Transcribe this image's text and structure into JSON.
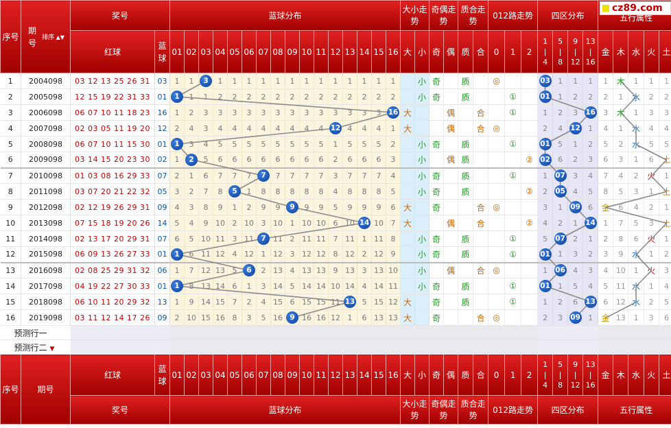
{
  "logo": {
    "text": "cz89.com"
  },
  "top_header": {
    "seq": "序号",
    "issue": "期号",
    "sort": "排序",
    "prize": "奖号",
    "blue_dist": "蓝球分布",
    "big_small": "大小走势",
    "odd_even": "奇偶走势",
    "prime_comp": "质合走势",
    "road012": "012路走势",
    "zone4": "四区分布",
    "wuxing": "五行属性",
    "red_ball": "红球",
    "blue_ball": "蓝球",
    "nums": [
      "01",
      "02",
      "03",
      "04",
      "05",
      "06",
      "07",
      "08",
      "09",
      "10",
      "11",
      "12",
      "13",
      "14",
      "15",
      "16"
    ],
    "bs_labels": [
      "大",
      "小"
    ],
    "oe_labels": [
      "奇",
      "偶"
    ],
    "pc_labels": [
      "质",
      "合"
    ],
    "road_labels": [
      "0",
      "1",
      "2"
    ],
    "zones": [
      {
        "a": "1",
        "b": "|",
        "c": "4"
      },
      {
        "a": "5",
        "b": "|",
        "c": "8"
      },
      {
        "a": "9",
        "b": "|",
        "c": "12"
      },
      {
        "a": "13",
        "b": "|",
        "c": "16"
      }
    ],
    "elements": [
      "金",
      "木",
      "水",
      "火",
      "土"
    ]
  },
  "rows": [
    {
      "seq": "1",
      "issue": "2004098",
      "red": "03 12 13 25 26 31",
      "blue": "03",
      "dist": [
        "1",
        "1",
        "3",
        "1",
        "1",
        "1",
        "1",
        "1",
        "1",
        "1",
        "1",
        "1",
        "1",
        "1",
        "1",
        "1"
      ],
      "bs": "小",
      "oe": "奇",
      "pc": "质",
      "road": "◎",
      "road_idx": 0,
      "zone": [
        "03",
        "1",
        "1",
        "1"
      ],
      "zone_idx": 0,
      "wx": [
        "1",
        "木",
        "1",
        "1",
        "1"
      ],
      "wx_idx": 1
    },
    {
      "seq": "2",
      "issue": "2005098",
      "red": "12 15 19 22 31 33",
      "blue": "01",
      "dist": [
        "1",
        "1",
        "1",
        "2",
        "2",
        "2",
        "2",
        "2",
        "2",
        "2",
        "2",
        "2",
        "2",
        "2",
        "2",
        "2"
      ],
      "bs": "小",
      "oe": "奇",
      "pc": "质",
      "road": "①",
      "road_idx": 1,
      "zone": [
        "01",
        "1",
        "2",
        "2"
      ],
      "zone_idx": 0,
      "wx": [
        "2",
        "1",
        "水",
        "2",
        "2"
      ],
      "wx_idx": 2
    },
    {
      "seq": "3",
      "issue": "2006098",
      "red": "06 07 10 11 18 23",
      "blue": "16",
      "dist": [
        "1",
        "2",
        "3",
        "3",
        "3",
        "3",
        "3",
        "3",
        "3",
        "3",
        "3",
        "3",
        "3",
        "3",
        "3",
        "16"
      ],
      "bs": "大",
      "oe": "偶",
      "pc": "合",
      "road": "①",
      "road_idx": 1,
      "zone": [
        "1",
        "2",
        "3",
        "16"
      ],
      "zone_idx": 3,
      "wx": [
        "3",
        "木",
        "1",
        "3",
        "3"
      ],
      "wx_idx": 1
    },
    {
      "seq": "4",
      "issue": "2007098",
      "red": "02 03 05 11 19 20",
      "blue": "12",
      "dist": [
        "2",
        "4",
        "3",
        "4",
        "4",
        "4",
        "4",
        "4",
        "4",
        "4",
        "4",
        "12",
        "4",
        "4",
        "4",
        "1"
      ],
      "bs": "大",
      "oe": "偶",
      "pc": "合",
      "road": "◎",
      "road_idx": 0,
      "zone": [
        "2",
        "4",
        "12",
        "1"
      ],
      "zone_idx": 2,
      "wx": [
        "4",
        "1",
        "水",
        "4",
        "4"
      ],
      "wx_idx": 2
    },
    {
      "seq": "5",
      "issue": "2008098",
      "red": "06 07 10 11 15 30",
      "blue": "01",
      "dist": [
        "1",
        "3",
        "4",
        "5",
        "5",
        "5",
        "5",
        "5",
        "5",
        "5",
        "5",
        "1",
        "5",
        "5",
        "5",
        "2"
      ],
      "bs": "小",
      "oe": "奇",
      "pc": "质",
      "road": "①",
      "road_idx": 1,
      "zone": [
        "01",
        "5",
        "1",
        "2"
      ],
      "zone_idx": 0,
      "wx": [
        "5",
        "2",
        "水",
        "5",
        "5"
      ],
      "wx_idx": 2
    },
    {
      "seq": "6",
      "issue": "2009098",
      "red": "03 14 15 20 23 30",
      "blue": "02",
      "dist": [
        "1",
        "2",
        "5",
        "6",
        "6",
        "6",
        "6",
        "6",
        "6",
        "6",
        "6",
        "2",
        "6",
        "6",
        "6",
        "3"
      ],
      "bs": "小",
      "oe": "偶",
      "pc": "质",
      "road": "②",
      "road_idx": 2,
      "zone": [
        "02",
        "6",
        "2",
        "3"
      ],
      "zone_idx": 0,
      "wx": [
        "6",
        "3",
        "1",
        "6",
        "土"
      ],
      "wx_idx": 4
    },
    {
      "seq": "7",
      "issue": "2010098",
      "red": "01 03 08 16 29 33",
      "blue": "07",
      "dist": [
        "2",
        "1",
        "6",
        "7",
        "7",
        "7",
        "7",
        "7",
        "7",
        "7",
        "7",
        "3",
        "7",
        "7",
        "7",
        "4"
      ],
      "bs": "小",
      "oe": "奇",
      "pc": "质",
      "road": "①",
      "road_idx": 1,
      "zone": [
        "1",
        "07",
        "3",
        "4"
      ],
      "zone_idx": 1,
      "wx": [
        "7",
        "4",
        "2",
        "火",
        "1"
      ],
      "wx_idx": 3
    },
    {
      "seq": "8",
      "issue": "2011098",
      "red": "03 07 20 21 22 32",
      "blue": "05",
      "dist": [
        "3",
        "2",
        "7",
        "8",
        "5",
        "1",
        "8",
        "8",
        "8",
        "8",
        "8",
        "4",
        "8",
        "8",
        "8",
        "5"
      ],
      "bs": "小",
      "oe": "奇",
      "pc": "质",
      "road": "②",
      "road_idx": 2,
      "zone": [
        "2",
        "05",
        "4",
        "5"
      ],
      "zone_idx": 1,
      "wx": [
        "8",
        "5",
        "3",
        "1",
        "土"
      ],
      "wx_idx": 4
    },
    {
      "seq": "9",
      "issue": "2012098",
      "red": "02 12 19 26 29 31",
      "blue": "09",
      "dist": [
        "4",
        "3",
        "8",
        "9",
        "1",
        "2",
        "9",
        "9",
        "9",
        "9",
        "9",
        "5",
        "9",
        "9",
        "9",
        "6"
      ],
      "bs": "大",
      "oe": "奇",
      "pc": "合",
      "road": "◎",
      "road_idx": 0,
      "zone": [
        "3",
        "1",
        "09",
        "6"
      ],
      "zone_idx": 2,
      "wx": [
        "金",
        "6",
        "4",
        "2",
        "1"
      ],
      "wx_idx": 0
    },
    {
      "seq": "10",
      "issue": "2013098",
      "red": "07 15 18 19 20 26",
      "blue": "14",
      "dist": [
        "5",
        "4",
        "9",
        "10",
        "2",
        "10",
        "3",
        "10",
        "1",
        "10",
        "10",
        "6",
        "10",
        "14",
        "10",
        "7"
      ],
      "bs": "大",
      "oe": "偶",
      "pc": "合",
      "road": "②",
      "road_idx": 2,
      "zone": [
        "4",
        "2",
        "1",
        "14"
      ],
      "zone_idx": 3,
      "wx": [
        "1",
        "7",
        "5",
        "3",
        "土"
      ],
      "wx_idx": 4
    },
    {
      "seq": "11",
      "issue": "2014098",
      "red": "02 13 17 20 29 31",
      "blue": "07",
      "dist": [
        "6",
        "5",
        "10",
        "11",
        "3",
        "11",
        "7",
        "11",
        "2",
        "11",
        "11",
        "7",
        "11",
        "1",
        "11",
        "8"
      ],
      "bs": "小",
      "oe": "奇",
      "pc": "质",
      "road": "①",
      "road_idx": 1,
      "zone": [
        "5",
        "07",
        "2",
        "1"
      ],
      "zone_idx": 1,
      "wx": [
        "2",
        "8",
        "6",
        "火",
        "1"
      ],
      "wx_idx": 3
    },
    {
      "seq": "12",
      "issue": "2015098",
      "red": "06 09 13 26 27 33",
      "blue": "01",
      "dist": [
        "1",
        "6",
        "11",
        "12",
        "4",
        "12",
        "1",
        "12",
        "3",
        "12",
        "12",
        "8",
        "12",
        "2",
        "12",
        "9"
      ],
      "bs": "小",
      "oe": "奇",
      "pc": "质",
      "road": "①",
      "road_idx": 1,
      "zone": [
        "01",
        "1",
        "3",
        "2"
      ],
      "zone_idx": 0,
      "wx": [
        "3",
        "9",
        "水",
        "1",
        "2"
      ],
      "wx_idx": 2
    },
    {
      "seq": "13",
      "issue": "2016098",
      "red": "02 08 25 29 31 32",
      "blue": "06",
      "dist": [
        "1",
        "7",
        "12",
        "13",
        "5",
        "6",
        "2",
        "13",
        "4",
        "13",
        "13",
        "9",
        "13",
        "3",
        "13",
        "10"
      ],
      "bs": "小",
      "oe": "偶",
      "pc": "合",
      "road": "◎",
      "road_idx": 0,
      "zone": [
        "1",
        "06",
        "4",
        "3"
      ],
      "zone_idx": 1,
      "wx": [
        "4",
        "10",
        "1",
        "火",
        "3"
      ],
      "wx_idx": 3
    },
    {
      "seq": "14",
      "issue": "2017098",
      "red": "04 19 22 27 30 33",
      "blue": "01",
      "dist": [
        "1",
        "8",
        "13",
        "14",
        "6",
        "1",
        "3",
        "14",
        "5",
        "14",
        "14",
        "10",
        "14",
        "4",
        "14",
        "11"
      ],
      "bs": "小",
      "oe": "奇",
      "pc": "质",
      "road": "①",
      "road_idx": 1,
      "zone": [
        "01",
        "1",
        "5",
        "4"
      ],
      "zone_idx": 0,
      "wx": [
        "5",
        "11",
        "水",
        "1",
        "4"
      ],
      "wx_idx": 2
    },
    {
      "seq": "15",
      "issue": "2018098",
      "red": "06 10 11 20 29 32",
      "blue": "13",
      "dist": [
        "1",
        "9",
        "14",
        "15",
        "7",
        "2",
        "4",
        "15",
        "6",
        "15",
        "15",
        "11",
        "13",
        "5",
        "15",
        "12"
      ],
      "bs": "大",
      "oe": "奇",
      "pc": "质",
      "road": "①",
      "road_idx": 1,
      "zone": [
        "1",
        "2",
        "6",
        "13"
      ],
      "zone_idx": 3,
      "wx": [
        "6",
        "12",
        "水",
        "2",
        "5"
      ],
      "wx_idx": 2
    },
    {
      "seq": "16",
      "issue": "2019098",
      "red": "03 11 12 14 17 26",
      "blue": "09",
      "dist": [
        "2",
        "10",
        "15",
        "16",
        "8",
        "3",
        "5",
        "16",
        "9",
        "16",
        "16",
        "12",
        "1",
        "6",
        "13",
        "13"
      ],
      "bs": "大",
      "oe": "奇",
      "pc": "合",
      "road": "◎",
      "road_idx": 0,
      "zone": [
        "2",
        "3",
        "09",
        "1"
      ],
      "zone_idx": 2,
      "wx": [
        "金",
        "13",
        "1",
        "3",
        "6"
      ],
      "wx_idx": 0
    }
  ],
  "predict": {
    "row1": "预测行一",
    "row2": "预测行二"
  }
}
